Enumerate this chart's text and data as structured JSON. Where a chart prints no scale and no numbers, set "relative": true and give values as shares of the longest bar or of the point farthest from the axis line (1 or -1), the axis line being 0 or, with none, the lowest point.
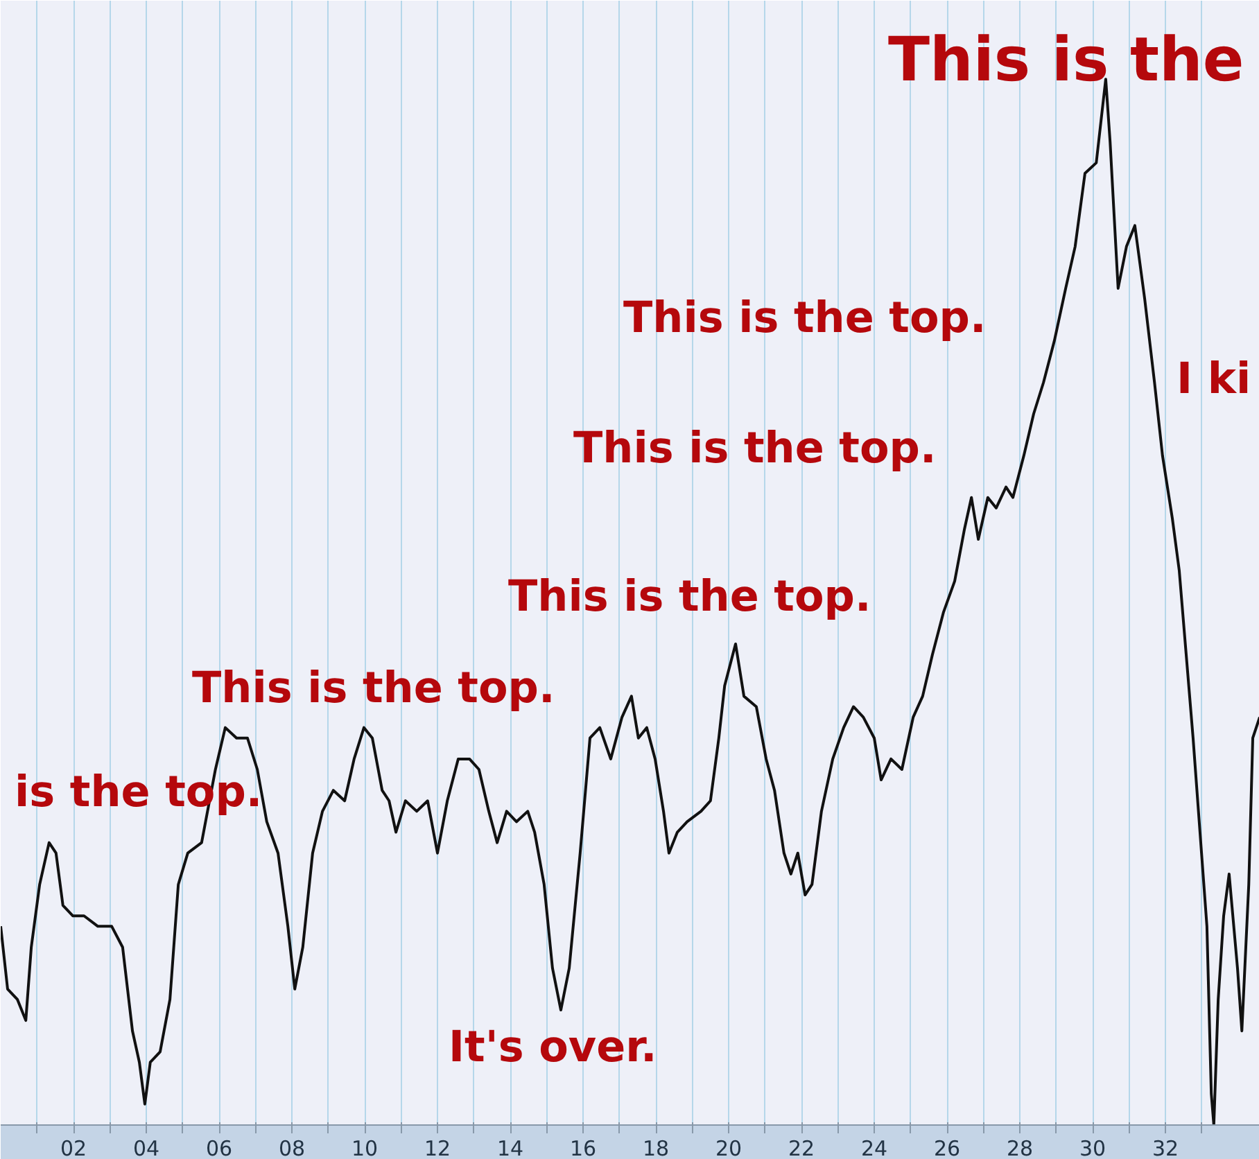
{
  "chart_data": {
    "type": "line",
    "relative": true,
    "grid": "x",
    "marker": "none",
    "line_style": "solid",
    "xlim": [
      1900,
      1934.59
    ],
    "xticks": [
      {
        "value": 1901,
        "label": null
      },
      {
        "value": 1902,
        "label": "02"
      },
      {
        "value": 1903,
        "label": null
      },
      {
        "value": 1904,
        "label": "04"
      },
      {
        "value": 1905,
        "label": null
      },
      {
        "value": 1906,
        "label": "06"
      },
      {
        "value": 1907,
        "label": null
      },
      {
        "value": 1908,
        "label": "08"
      },
      {
        "value": 1909,
        "label": null
      },
      {
        "value": 1910,
        "label": "10"
      },
      {
        "value": 1911,
        "label": null
      },
      {
        "value": 1912,
        "label": "12"
      },
      {
        "value": 1913,
        "label": null
      },
      {
        "value": 1914,
        "label": "14"
      },
      {
        "value": 1915,
        "label": null
      },
      {
        "value": 1916,
        "label": "16"
      },
      {
        "value": 1917,
        "label": null
      },
      {
        "value": 1918,
        "label": "18"
      },
      {
        "value": 1919,
        "label": null
      },
      {
        "value": 1920,
        "label": "20"
      },
      {
        "value": 1921,
        "label": null
      },
      {
        "value": 1922,
        "label": "22"
      },
      {
        "value": 1923,
        "label": null
      },
      {
        "value": 1924,
        "label": "24"
      },
      {
        "value": 1925,
        "label": null
      },
      {
        "value": 1926,
        "label": "26"
      },
      {
        "value": 1927,
        "label": null
      },
      {
        "value": 1928,
        "label": "28"
      },
      {
        "value": 1929,
        "label": null
      },
      {
        "value": 1930,
        "label": "30"
      },
      {
        "value": 1931,
        "label": null
      },
      {
        "value": 1932,
        "label": "32"
      },
      {
        "value": 1933,
        "label": null
      }
    ],
    "series": [
      {
        "color": "#111111",
        "x": [
          1900.0,
          1900.19,
          1900.46,
          1900.69,
          1900.84,
          1901.07,
          1901.33,
          1901.52,
          1901.71,
          1901.98,
          1902.29,
          1902.67,
          1903.05,
          1903.35,
          1903.62,
          1903.81,
          1903.96,
          1904.11,
          1904.38,
          1904.65,
          1904.88,
          1905.14,
          1905.52,
          1905.9,
          1906.17,
          1906.48,
          1906.78,
          1907.05,
          1907.31,
          1907.62,
          1907.89,
          1908.08,
          1908.3,
          1908.57,
          1908.84,
          1909.14,
          1909.45,
          1909.71,
          1909.98,
          1910.21,
          1910.48,
          1910.67,
          1910.86,
          1911.12,
          1911.43,
          1911.73,
          1912.0,
          1912.27,
          1912.57,
          1912.88,
          1913.14,
          1913.41,
          1913.64,
          1913.9,
          1914.17,
          1914.48,
          1914.67,
          1914.93,
          1915.16,
          1915.39,
          1915.62,
          1915.92,
          1916.19,
          1916.46,
          1916.76,
          1917.07,
          1917.33,
          1917.52,
          1917.75,
          1917.98,
          1918.21,
          1918.36,
          1918.59,
          1918.86,
          1919.24,
          1919.5,
          1919.73,
          1919.89,
          1920.19,
          1920.42,
          1920.76,
          1921.03,
          1921.26,
          1921.52,
          1921.71,
          1921.9,
          1922.1,
          1922.29,
          1922.55,
          1922.86,
          1923.16,
          1923.43,
          1923.7,
          1924.0,
          1924.19,
          1924.46,
          1924.76,
          1925.07,
          1925.33,
          1925.6,
          1925.9,
          1926.21,
          1926.48,
          1926.67,
          1926.86,
          1927.12,
          1927.35,
          1927.62,
          1927.81,
          1928.11,
          1928.38,
          1928.65,
          1928.95,
          1929.26,
          1929.52,
          1929.79,
          1930.1,
          1930.36,
          1930.48,
          1930.7,
          1930.93,
          1931.16,
          1931.43,
          1931.7,
          1931.92,
          1932.19,
          1932.38,
          1932.57,
          1932.76,
          1932.95,
          1933.14,
          1933.26,
          1933.33,
          1933.45,
          1933.6,
          1933.75,
          1933.98,
          1934.1,
          1934.29,
          1934.4,
          1934.59
        ],
        "values": [
          0.19,
          0.13,
          0.12,
          0.1,
          0.17,
          0.23,
          0.27,
          0.26,
          0.21,
          0.2,
          0.2,
          0.19,
          0.19,
          0.17,
          0.09,
          0.06,
          0.02,
          0.06,
          0.07,
          0.12,
          0.23,
          0.26,
          0.27,
          0.34,
          0.38,
          0.37,
          0.37,
          0.34,
          0.29,
          0.26,
          0.19,
          0.13,
          0.17,
          0.26,
          0.3,
          0.32,
          0.31,
          0.35,
          0.38,
          0.37,
          0.32,
          0.31,
          0.28,
          0.31,
          0.3,
          0.31,
          0.26,
          0.31,
          0.35,
          0.35,
          0.34,
          0.3,
          0.27,
          0.3,
          0.29,
          0.3,
          0.28,
          0.23,
          0.15,
          0.11,
          0.15,
          0.26,
          0.37,
          0.38,
          0.35,
          0.39,
          0.41,
          0.37,
          0.38,
          0.35,
          0.3,
          0.26,
          0.28,
          0.29,
          0.3,
          0.31,
          0.37,
          0.42,
          0.46,
          0.41,
          0.4,
          0.35,
          0.32,
          0.26,
          0.24,
          0.26,
          0.22,
          0.23,
          0.3,
          0.35,
          0.38,
          0.4,
          0.39,
          0.37,
          0.33,
          0.35,
          0.34,
          0.39,
          0.41,
          0.45,
          0.49,
          0.52,
          0.57,
          0.6,
          0.56,
          0.6,
          0.59,
          0.61,
          0.6,
          0.64,
          0.68,
          0.71,
          0.75,
          0.8,
          0.84,
          0.91,
          0.92,
          1.0,
          0.94,
          0.8,
          0.84,
          0.86,
          0.79,
          0.71,
          0.64,
          0.58,
          0.53,
          0.45,
          0.37,
          0.28,
          0.19,
          0.03,
          0.0,
          0.12,
          0.2,
          0.24,
          0.15,
          0.09,
          0.23,
          0.37,
          0.39
        ]
      }
    ],
    "annotations": [
      "is the top.",
      "This is the top.",
      "It's over.",
      "This is the top.",
      "This is the top.",
      "This is the top.",
      "I ki",
      "This is the"
    ]
  }
}
